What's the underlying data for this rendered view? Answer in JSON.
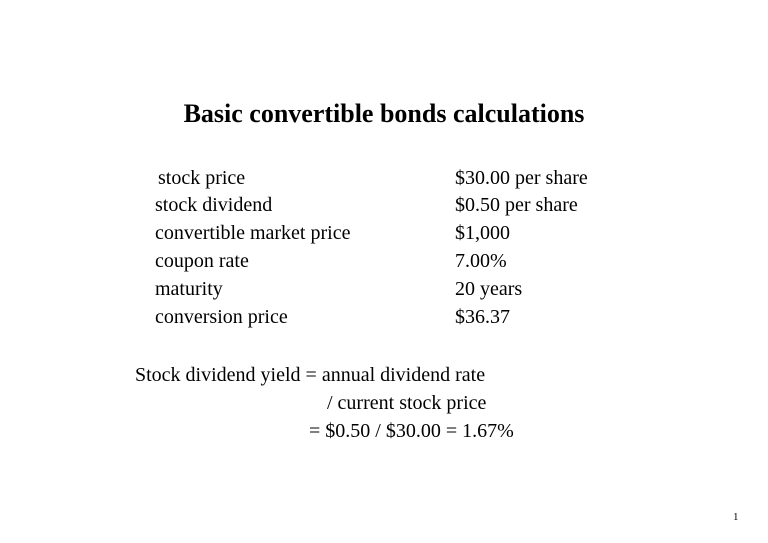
{
  "title": "Basic convertible bonds calculations",
  "rows": [
    {
      "label": "stock price",
      "value": "$30.00 per share"
    },
    {
      "label": "stock dividend",
      "value": "$0.50 per share"
    },
    {
      "label": "convertible market price",
      "value": "$1,000"
    },
    {
      "label": "coupon rate",
      "value": "7.00%"
    },
    {
      "label": "maturity",
      "value": "20 years"
    },
    {
      "label": "conversion price",
      "value": "$36.37"
    }
  ],
  "formula": {
    "line1": "Stock dividend yield = annual dividend rate",
    "line2": "/ current stock price",
    "line3": "= $0.50 / $30.00 = 1.67%"
  },
  "page_number": "1"
}
